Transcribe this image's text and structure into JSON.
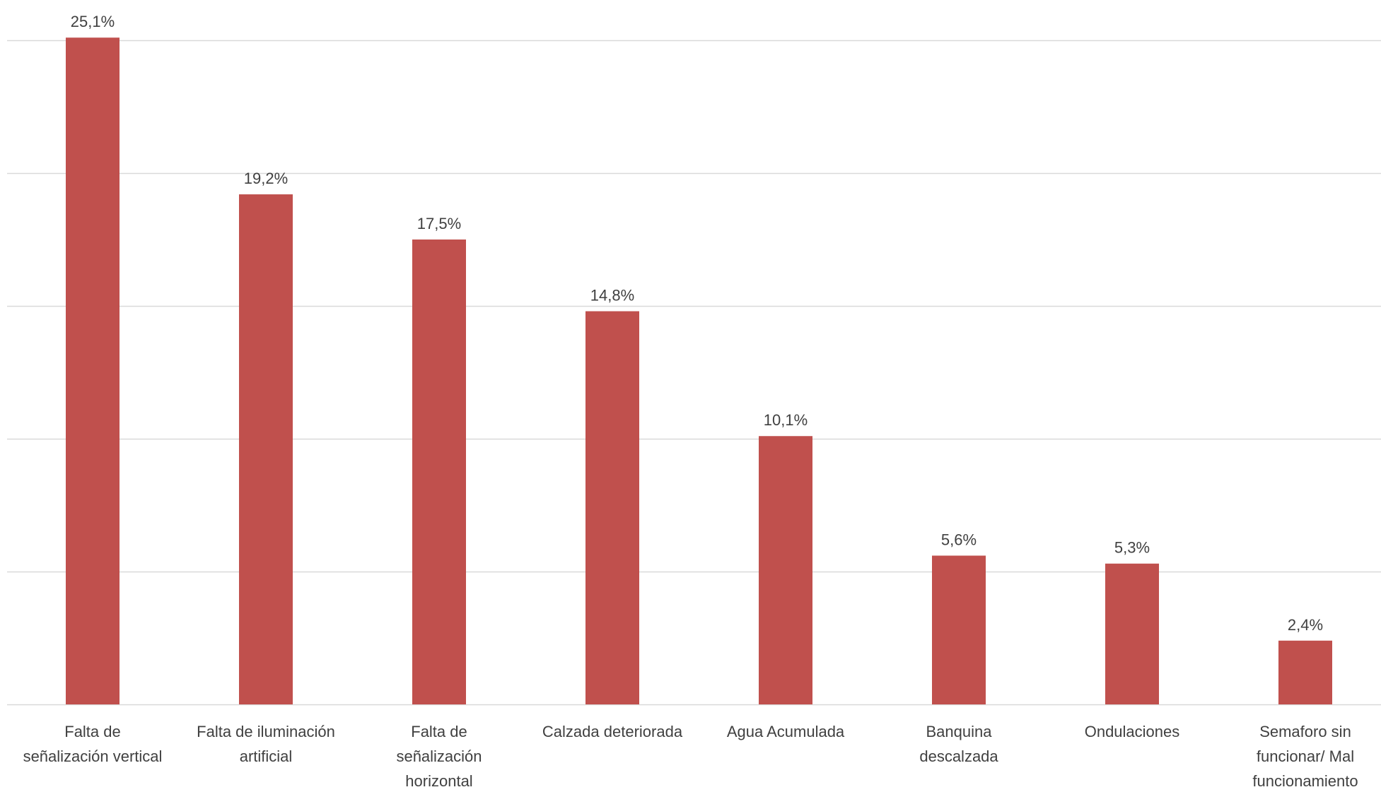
{
  "chart_data": {
    "type": "bar",
    "categories": [
      [
        "Falta de",
        "señalización vertical"
      ],
      [
        "Falta de iluminación",
        "artificial"
      ],
      [
        "Falta de",
        "señalización",
        "horizontal"
      ],
      [
        "Calzada deteriorada"
      ],
      [
        "Agua Acumulada"
      ],
      [
        "Banquina",
        "descalzada"
      ],
      [
        "Ondulaciones"
      ],
      [
        "Semaforo sin",
        "funcionar/ Mal",
        "funcionamiento"
      ]
    ],
    "values": [
      25.1,
      19.2,
      17.5,
      14.8,
      10.1,
      5.6,
      5.3,
      2.4
    ],
    "data_labels": [
      "25,1%",
      "19,2%",
      "17,5%",
      "14,8%",
      "10,1%",
      "5,6%",
      "5,3%",
      "2,4%"
    ],
    "ylim": [
      0,
      25
    ],
    "grid": true,
    "title": "",
    "xlabel": "",
    "ylabel": "",
    "colors": {
      "bar": "#c0504d",
      "grid": "#d9d9d9",
      "text": "#404040"
    }
  }
}
